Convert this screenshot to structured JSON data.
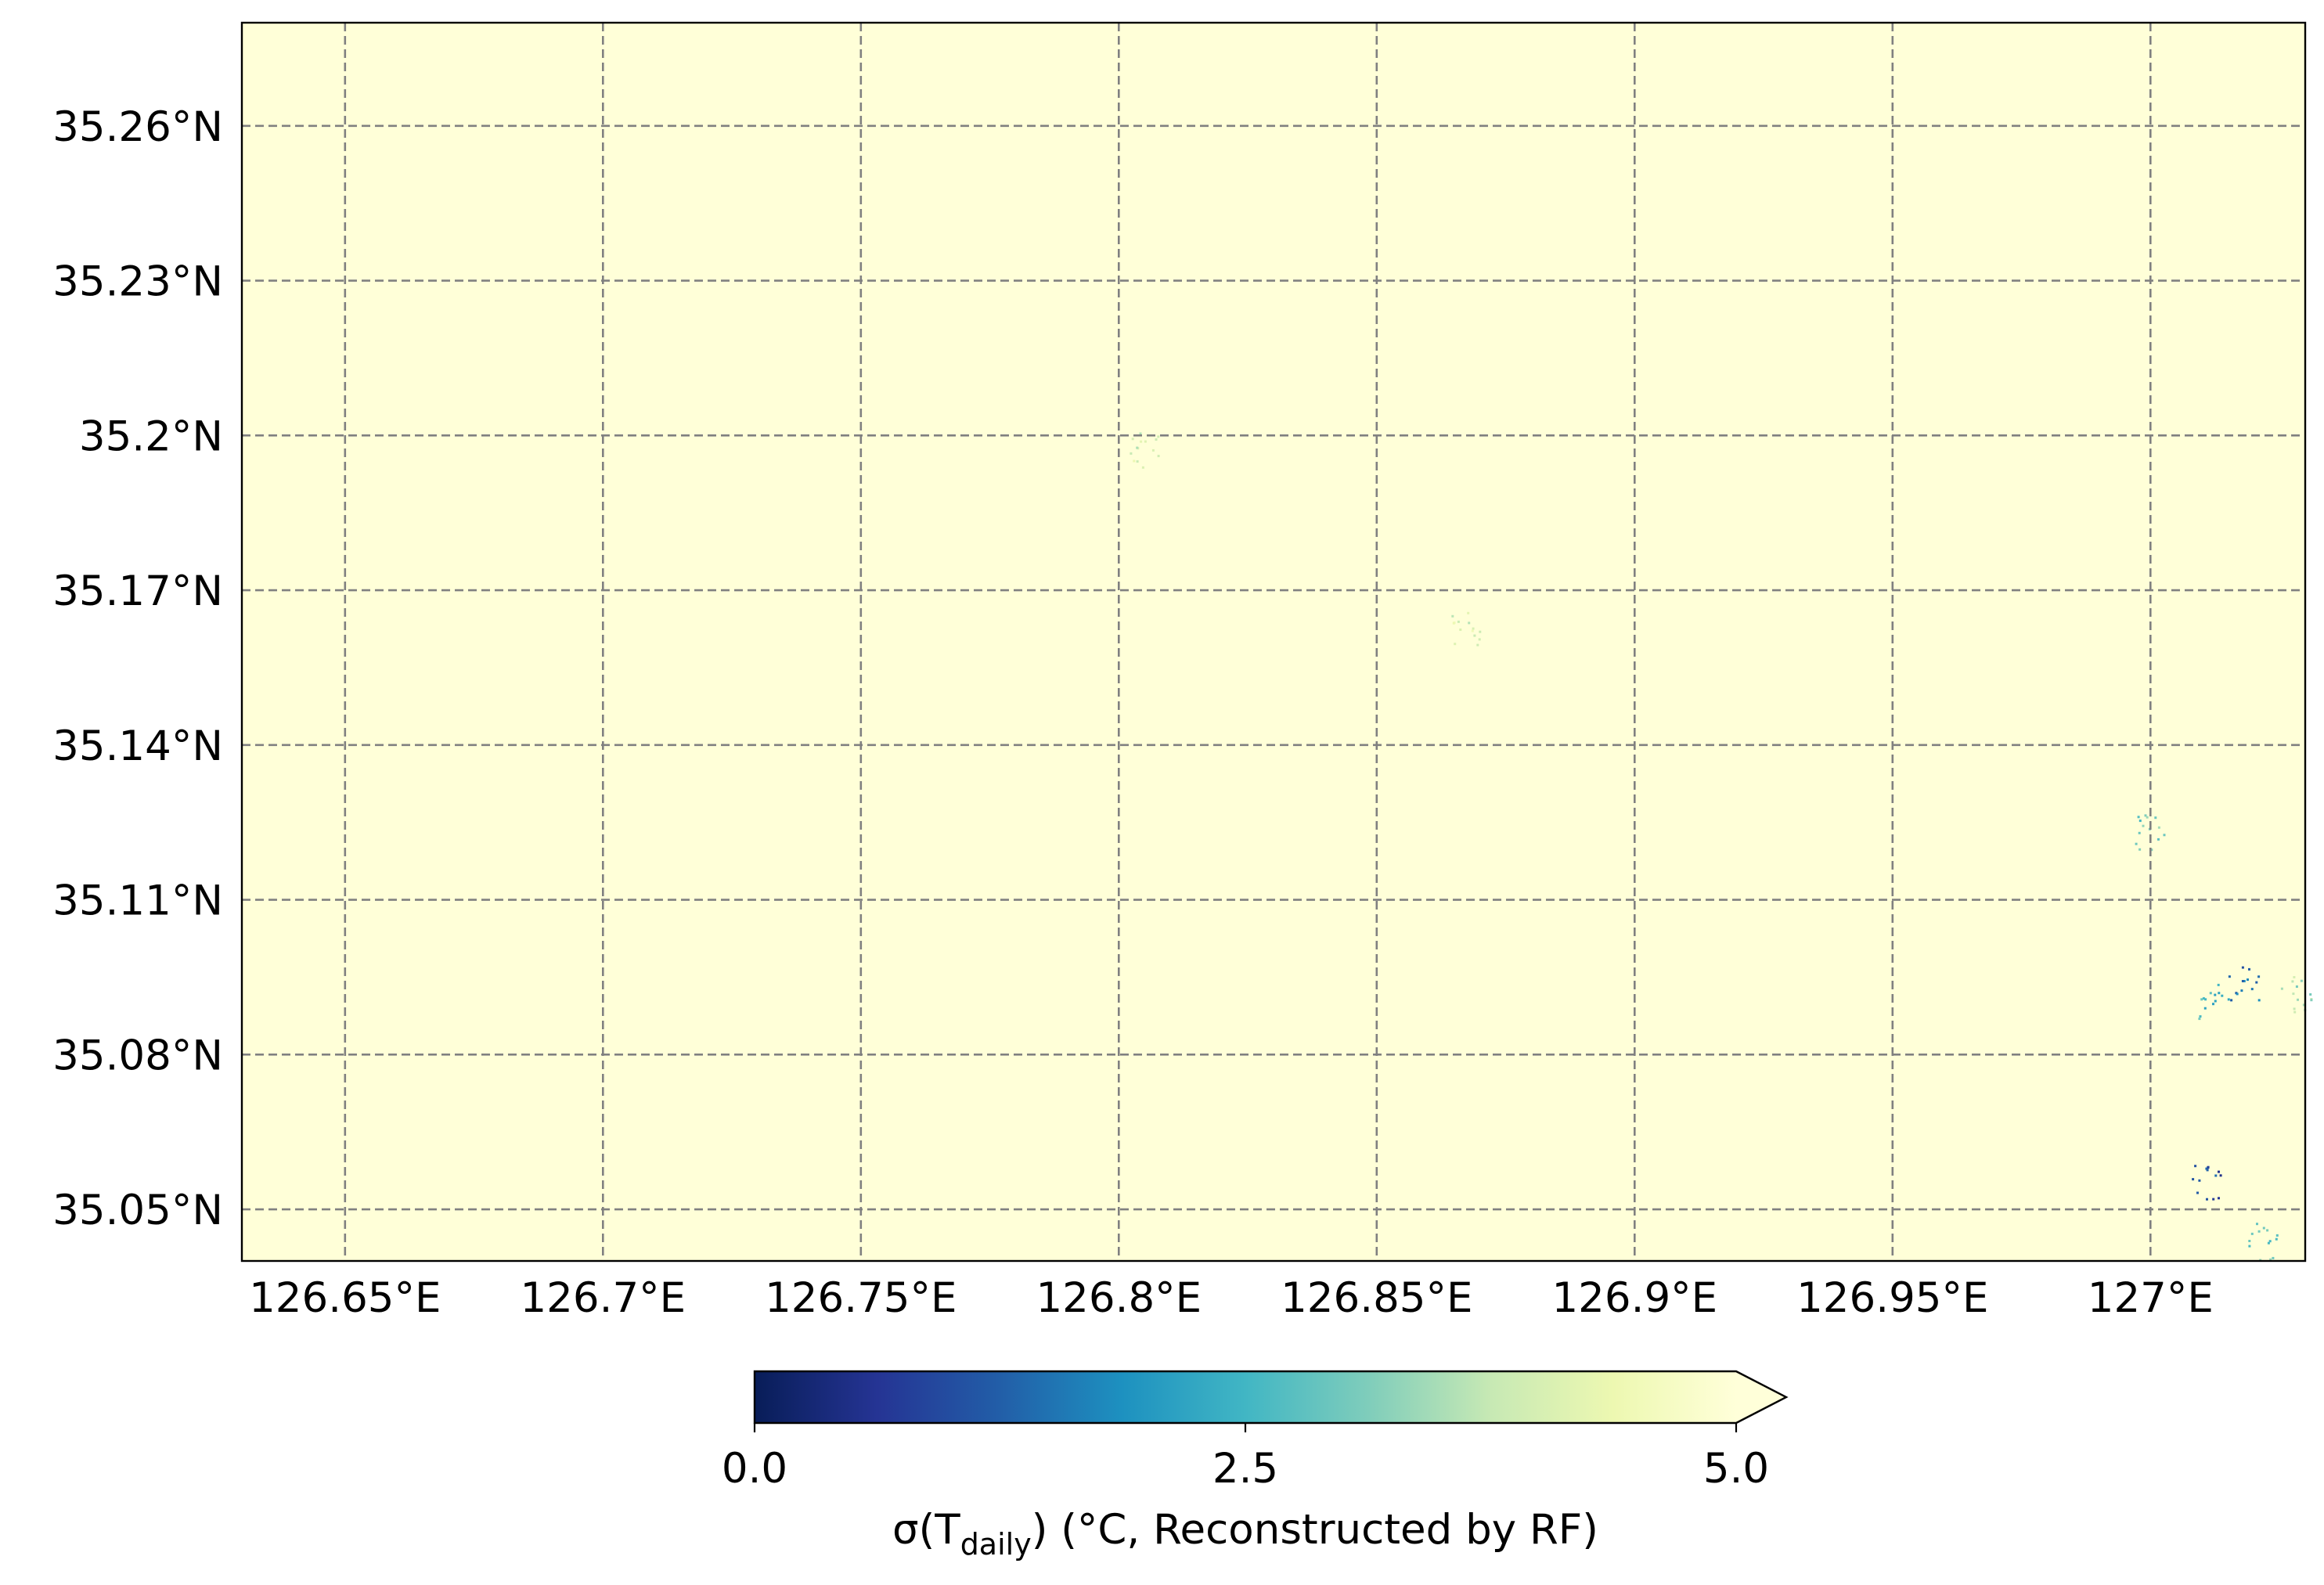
{
  "chart_data": {
    "type": "heatmap",
    "title": "",
    "field_fill_color": "#ffffd8",
    "x_axis": {
      "label": "",
      "range": [
        126.63,
        127.03
      ],
      "ticks": [
        126.65,
        126.7,
        126.75,
        126.8,
        126.85,
        126.9,
        126.95,
        127.0
      ],
      "tick_labels": [
        "126.65°E",
        "126.7°E",
        "126.75°E",
        "126.8°E",
        "126.85°E",
        "126.9°E",
        "126.95°E",
        "127°E"
      ]
    },
    "y_axis": {
      "label": "",
      "range": [
        35.04,
        35.28
      ],
      "ticks": [
        35.05,
        35.08,
        35.11,
        35.14,
        35.17,
        35.2,
        35.23,
        35.26
      ],
      "tick_labels": [
        "35.05°N",
        "35.08°N",
        "35.11°N",
        "35.14°N",
        "35.17°N",
        "35.2°N",
        "35.23°N",
        "35.26°N"
      ]
    },
    "grid": true,
    "grid_style": "dashed",
    "colorbar": {
      "colormap": "YlGnBu_r",
      "min": 0.0,
      "max": 5.0,
      "extend": "max",
      "ticks": [
        0.0,
        2.5,
        5.0
      ],
      "tick_labels": [
        "0.0",
        "2.5",
        "5.0"
      ],
      "label_main": "σ(T",
      "label_sub": "daily",
      "label_tail": ") (°C, Reconstructed by RF)",
      "colors": [
        "#081d58",
        "#253494",
        "#225ea8",
        "#1d91c0",
        "#41b6c4",
        "#7fcdbb",
        "#c7e9b4",
        "#edf8b1",
        "#ffffd9"
      ]
    },
    "low_value_clusters": [
      {
        "lon": 127.012,
        "lat": 35.0905,
        "value": 2.5
      },
      {
        "lon": 127.018,
        "lat": 35.094,
        "value": 1.5
      },
      {
        "lon": 127.011,
        "lat": 35.055,
        "value": 1.0
      },
      {
        "lon": 127.0,
        "lat": 35.123,
        "value": 3.0
      },
      {
        "lon": 127.028,
        "lat": 35.092,
        "value": 3.5
      },
      {
        "lon": 126.805,
        "lat": 35.197,
        "value": 4.0
      },
      {
        "lon": 126.867,
        "lat": 35.163,
        "value": 4.0
      },
      {
        "lon": 127.022,
        "lat": 35.044,
        "value": 3.0
      }
    ]
  }
}
